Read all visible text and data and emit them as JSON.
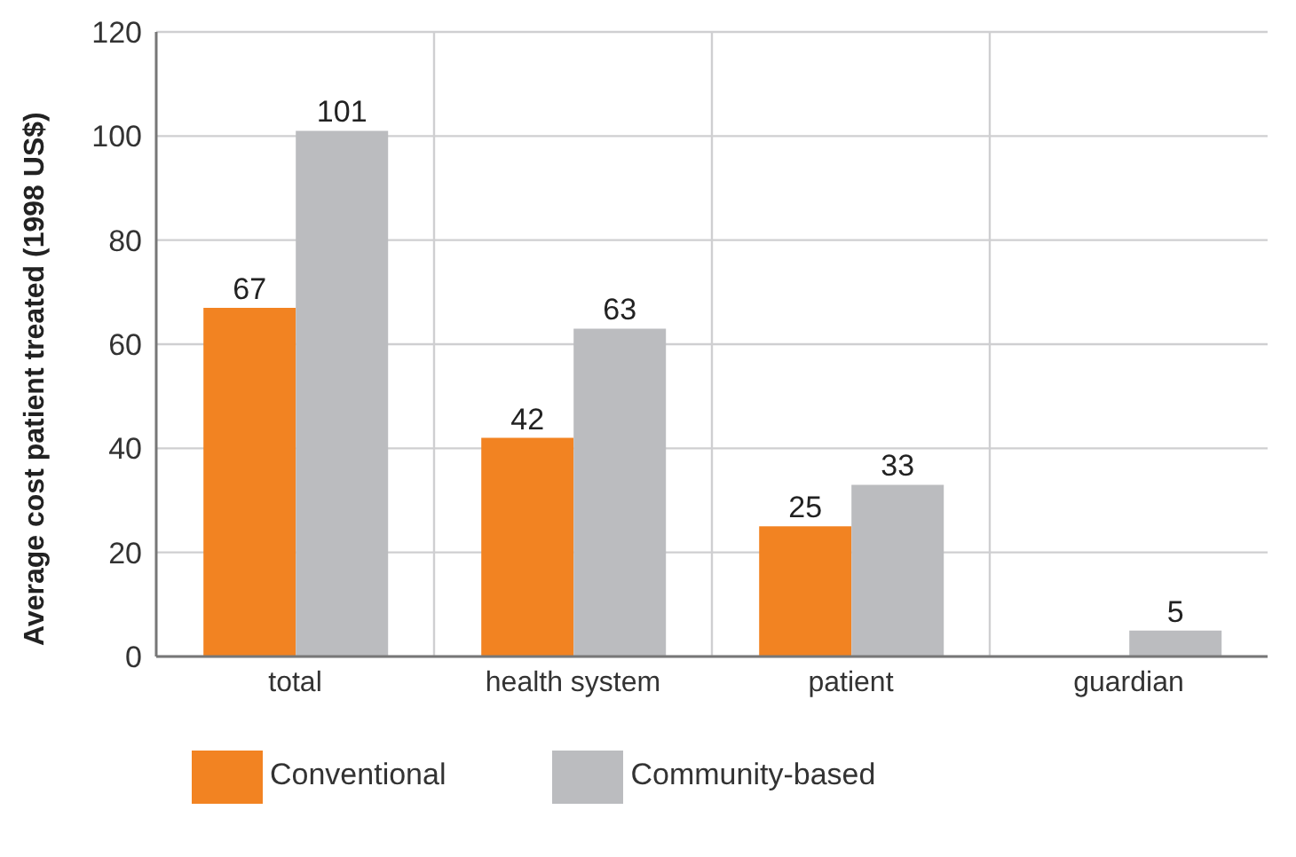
{
  "chart_data": {
    "type": "bar",
    "ylabel": "Average cost patient treated (1998 US$)",
    "categories": [
      "total",
      "health system",
      "patient",
      "guardian"
    ],
    "series": [
      {
        "name": "Conventional",
        "color": "#f28322",
        "values": [
          67,
          42,
          25,
          null
        ]
      },
      {
        "name": "Community-based",
        "color": "#bbbcbf",
        "values": [
          101,
          63,
          33,
          5
        ]
      }
    ],
    "ylim": [
      0,
      120
    ],
    "yticks": [
      0,
      20,
      40,
      60,
      80,
      100,
      120
    ],
    "grid": true,
    "legend": "bottom left",
    "data_labels": true
  }
}
